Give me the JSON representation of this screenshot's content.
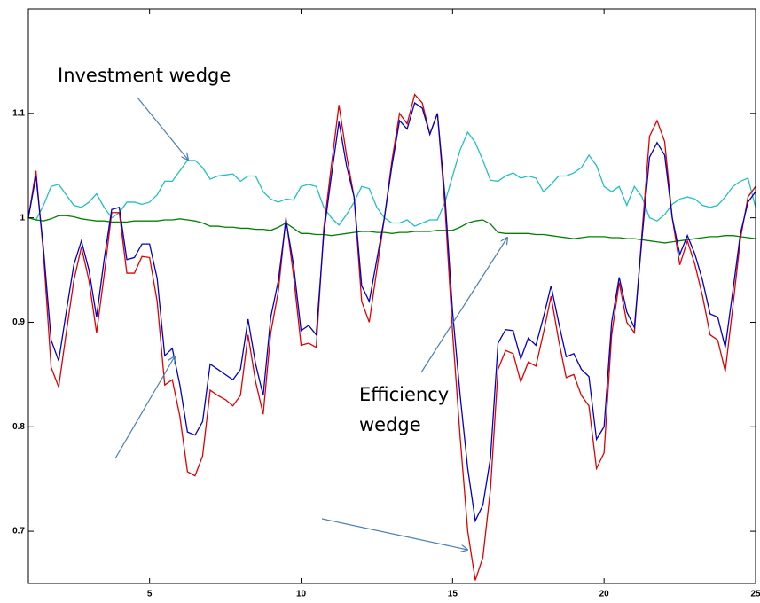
{
  "chart_data": {
    "type": "line",
    "annotations": [
      "Investment wedge",
      "Efficiency",
      "wedge"
    ],
    "x": [
      1,
      1.25,
      1.5,
      1.75,
      2,
      2.25,
      2.5,
      2.75,
      3,
      3.25,
      3.5,
      3.75,
      4,
      4.25,
      4.5,
      4.75,
      5,
      5.25,
      5.5,
      5.75,
      6,
      6.25,
      6.5,
      6.75,
      7,
      7.25,
      7.5,
      7.75,
      8,
      8.25,
      8.5,
      8.75,
      9,
      9.25,
      9.5,
      9.75,
      10,
      10.25,
      10.5,
      10.75,
      11,
      11.25,
      11.5,
      11.75,
      12,
      12.25,
      12.5,
      12.75,
      13,
      13.25,
      13.5,
      13.75,
      14,
      14.25,
      14.5,
      14.75,
      15,
      15.25,
      15.5,
      15.75,
      16,
      16.25,
      16.5,
      16.75,
      17,
      17.25,
      17.5,
      17.75,
      18,
      18.25,
      18.5,
      18.75,
      19,
      19.25,
      19.5,
      19.75,
      20,
      20.25,
      20.5,
      20.75,
      21,
      21.25,
      21.5,
      21.75,
      22,
      22.25,
      22.5,
      22.75,
      23,
      23.25,
      23.5,
      23.75,
      24,
      24.25,
      24.5,
      24.75,
      25
    ],
    "series": [
      {
        "color": "#20c0c0",
        "values": [
          1.0,
          0.998,
          1.012,
          1.03,
          1.032,
          1.022,
          1.012,
          1.01,
          1.015,
          1.023,
          1.01,
          1.0,
          1.005,
          1.015,
          1.015,
          1.013,
          1.015,
          1.022,
          1.035,
          1.035,
          1.045,
          1.055,
          1.055,
          1.048,
          1.037,
          1.04,
          1.041,
          1.042,
          1.035,
          1.04,
          1.04,
          1.025,
          1.018,
          1.015,
          1.018,
          1.017,
          1.03,
          1.032,
          1.03,
          1.01,
          1.0,
          0.993,
          1.003,
          1.015,
          1.03,
          1.028,
          1.01,
          1.0,
          0.995,
          0.995,
          0.998,
          0.992,
          0.995,
          0.998,
          0.998,
          1.015,
          1.04,
          1.065,
          1.082,
          1.072,
          1.055,
          1.036,
          1.035,
          1.04,
          1.043,
          1.038,
          1.04,
          1.038,
          1.025,
          1.032,
          1.04,
          1.04,
          1.043,
          1.048,
          1.06,
          1.05,
          1.03,
          1.025,
          1.03,
          1.012,
          1.03,
          1.02,
          1.0,
          0.997,
          1.003,
          1.013,
          1.018,
          1.02,
          1.018,
          1.012,
          1.01,
          1.012,
          1.02,
          1.03,
          1.035,
          1.038,
          1.01
        ]
      },
      {
        "color": "#008000",
        "values": [
          1.0,
          0.998,
          0.997,
          0.999,
          1.002,
          1.002,
          1.001,
          0.999,
          0.998,
          0.997,
          0.997,
          0.996,
          0.996,
          0.996,
          0.997,
          0.997,
          0.997,
          0.997,
          0.998,
          0.998,
          0.999,
          0.998,
          0.997,
          0.995,
          0.992,
          0.992,
          0.991,
          0.991,
          0.99,
          0.99,
          0.989,
          0.989,
          0.988,
          0.991,
          0.995,
          0.99,
          0.985,
          0.985,
          0.984,
          0.984,
          0.983,
          0.984,
          0.985,
          0.986,
          0.987,
          0.987,
          0.986,
          0.986,
          0.985,
          0.986,
          0.986,
          0.987,
          0.987,
          0.987,
          0.988,
          0.988,
          0.988,
          0.991,
          0.995,
          0.997,
          0.998,
          0.994,
          0.986,
          0.985,
          0.985,
          0.985,
          0.985,
          0.984,
          0.984,
          0.983,
          0.982,
          0.981,
          0.98,
          0.981,
          0.982,
          0.982,
          0.982,
          0.981,
          0.981,
          0.98,
          0.98,
          0.979,
          0.978,
          0.977,
          0.976,
          0.977,
          0.978,
          0.979,
          0.98,
          0.981,
          0.982,
          0.982,
          0.983,
          0.983,
          0.982,
          0.981,
          0.98
        ]
      },
      {
        "color": "#e00000",
        "values": [
          1.0,
          1.045,
          0.965,
          0.857,
          0.838,
          0.89,
          0.94,
          0.972,
          0.94,
          0.89,
          0.945,
          1.005,
          1.005,
          0.947,
          0.947,
          0.963,
          0.962,
          0.92,
          0.84,
          0.845,
          0.81,
          0.757,
          0.753,
          0.772,
          0.835,
          0.83,
          0.826,
          0.82,
          0.83,
          0.888,
          0.843,
          0.812,
          0.89,
          0.93,
          1.0,
          0.945,
          0.878,
          0.88,
          0.876,
          0.99,
          1.05,
          1.108,
          1.06,
          1.02,
          0.92,
          0.9,
          0.95,
          1.0,
          1.055,
          1.1,
          1.09,
          1.118,
          1.11,
          1.08,
          1.1,
          1.01,
          0.89,
          0.79,
          0.7,
          0.653,
          0.675,
          0.74,
          0.855,
          0.873,
          0.87,
          0.843,
          0.862,
          0.858,
          0.89,
          0.925,
          0.883,
          0.847,
          0.85,
          0.83,
          0.82,
          0.76,
          0.775,
          0.888,
          0.938,
          0.9,
          0.89,
          0.985,
          1.078,
          1.093,
          1.073,
          1.0,
          0.955,
          0.978,
          0.955,
          0.925,
          0.888,
          0.883,
          0.853,
          0.915,
          0.98,
          1.02,
          1.03
        ]
      },
      {
        "color": "#0000cc",
        "values": [
          1.0,
          1.04,
          0.97,
          0.883,
          0.863,
          0.91,
          0.955,
          0.978,
          0.95,
          0.905,
          0.96,
          1.008,
          1.01,
          0.96,
          0.962,
          0.975,
          0.975,
          0.942,
          0.868,
          0.875,
          0.84,
          0.795,
          0.792,
          0.805,
          0.86,
          0.855,
          0.85,
          0.845,
          0.855,
          0.903,
          0.86,
          0.83,
          0.905,
          0.94,
          0.998,
          0.955,
          0.892,
          0.897,
          0.888,
          0.985,
          1.04,
          1.092,
          1.05,
          1.02,
          0.935,
          0.92,
          0.96,
          1.0,
          1.05,
          1.093,
          1.085,
          1.11,
          1.105,
          1.08,
          1.1,
          1.02,
          0.91,
          0.83,
          0.76,
          0.71,
          0.725,
          0.77,
          0.88,
          0.893,
          0.892,
          0.865,
          0.885,
          0.878,
          0.905,
          0.935,
          0.9,
          0.867,
          0.87,
          0.855,
          0.848,
          0.788,
          0.8,
          0.9,
          0.943,
          0.91,
          0.895,
          0.98,
          1.058,
          1.072,
          1.06,
          1.0,
          0.965,
          0.983,
          0.965,
          0.94,
          0.908,
          0.905,
          0.876,
          0.93,
          0.985,
          1.015,
          1.025
        ]
      }
    ],
    "xlim": [
      1,
      25
    ],
    "xticks": [
      5,
      10,
      15,
      20,
      25
    ],
    "ylim": [
      0.65,
      1.2
    ],
    "yticks": [
      0.7,
      0.8,
      0.9,
      1,
      1.1
    ]
  }
}
